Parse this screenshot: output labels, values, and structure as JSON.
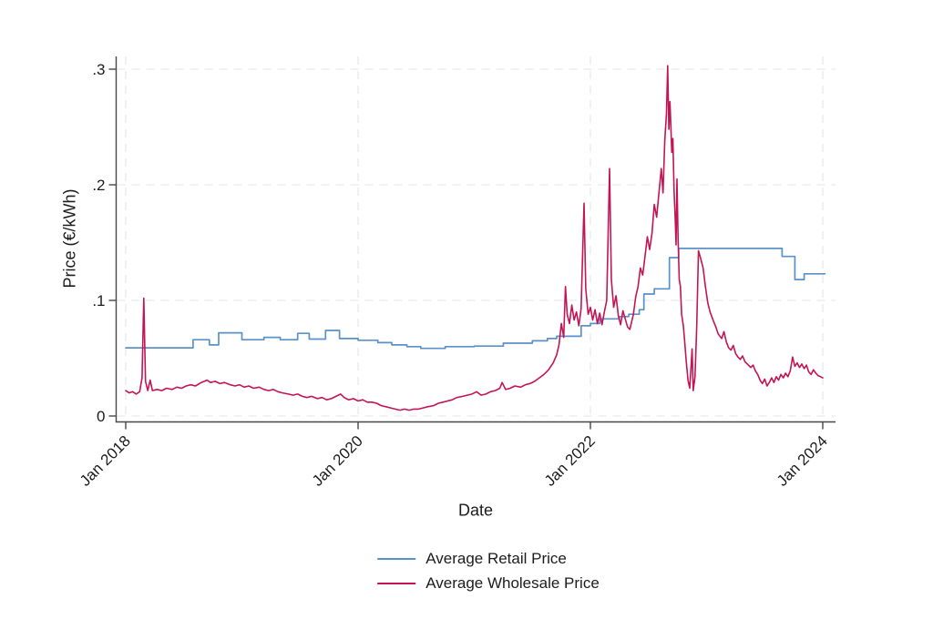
{
  "figure": {
    "background": "#ffffff",
    "axis_color": "#474747",
    "grid_color": "#e5e5e5",
    "text_color": "#1c1c1c"
  },
  "chart_data": {
    "type": "line",
    "title": "",
    "xlabel": "Date",
    "ylabel": "Price (€/kWh)",
    "grid": {
      "show": true,
      "style": "dashed",
      "which": "both"
    },
    "legend": {
      "position": "bottom-center"
    },
    "x_axis": {
      "range": [
        2017.91,
        2024.11
      ],
      "label_rotation_deg": 45,
      "ticks": [
        {
          "value": 2018.0,
          "label": "Jan 2018"
        },
        {
          "value": 2020.0,
          "label": "Jan 2020"
        },
        {
          "value": 2022.0,
          "label": "Jan 2022"
        },
        {
          "value": 2024.0,
          "label": "Jan 2024"
        }
      ]
    },
    "y_axis": {
      "range": [
        0,
        0.311
      ],
      "ticks": [
        {
          "value": 0.0,
          "label": "0"
        },
        {
          "value": 0.1,
          "label": ".1"
        },
        {
          "value": 0.2,
          "label": ".2"
        },
        {
          "value": 0.3,
          "label": ".3"
        }
      ]
    },
    "series": [
      {
        "name": "Average Retail Price",
        "color": "#5a91c8",
        "width": 1.7,
        "interpolation": "step-after",
        "points": [
          [
            2018.0,
            0.059
          ],
          [
            2018.58,
            0.066
          ],
          [
            2018.72,
            0.0615
          ],
          [
            2018.8,
            0.072
          ],
          [
            2019.0,
            0.066
          ],
          [
            2019.19,
            0.068
          ],
          [
            2019.33,
            0.066
          ],
          [
            2019.48,
            0.0715
          ],
          [
            2019.58,
            0.0665
          ],
          [
            2019.72,
            0.074
          ],
          [
            2019.84,
            0.067
          ],
          [
            2020.0,
            0.0655
          ],
          [
            2020.17,
            0.0635
          ],
          [
            2020.29,
            0.0615
          ],
          [
            2020.42,
            0.06
          ],
          [
            2020.54,
            0.0585
          ],
          [
            2020.75,
            0.06
          ],
          [
            2021.0,
            0.0605
          ],
          [
            2021.25,
            0.063
          ],
          [
            2021.5,
            0.065
          ],
          [
            2021.63,
            0.067
          ],
          [
            2021.71,
            0.069
          ],
          [
            2021.92,
            0.078
          ],
          [
            2022.0,
            0.08
          ],
          [
            2022.08,
            0.084
          ],
          [
            2022.25,
            0.086
          ],
          [
            2022.33,
            0.088
          ],
          [
            2022.42,
            0.092
          ],
          [
            2022.46,
            0.1055
          ],
          [
            2022.55,
            0.11
          ],
          [
            2022.68,
            0.137
          ],
          [
            2022.76,
            0.145
          ],
          [
            2023.65,
            0.138
          ],
          [
            2023.76,
            0.118
          ],
          [
            2023.84,
            0.123
          ],
          [
            2024.02,
            0.123
          ]
        ]
      },
      {
        "name": "Average Wholesale Price",
        "color": "#c31555",
        "width": 1.6,
        "interpolation": "linear",
        "points": [
          [
            2018.0,
            0.022
          ],
          [
            2018.03,
            0.02
          ],
          [
            2018.06,
            0.021
          ],
          [
            2018.09,
            0.019
          ],
          [
            2018.12,
            0.021
          ],
          [
            2018.14,
            0.033
          ],
          [
            2018.155,
            0.102
          ],
          [
            2018.17,
            0.03
          ],
          [
            2018.19,
            0.022
          ],
          [
            2018.21,
            0.031
          ],
          [
            2018.23,
            0.022
          ],
          [
            2018.27,
            0.023
          ],
          [
            2018.31,
            0.022
          ],
          [
            2018.35,
            0.024
          ],
          [
            2018.4,
            0.023
          ],
          [
            2018.44,
            0.025
          ],
          [
            2018.48,
            0.024
          ],
          [
            2018.52,
            0.026
          ],
          [
            2018.56,
            0.027
          ],
          [
            2018.6,
            0.026
          ],
          [
            2018.65,
            0.029
          ],
          [
            2018.7,
            0.031
          ],
          [
            2018.73,
            0.029
          ],
          [
            2018.77,
            0.03
          ],
          [
            2018.81,
            0.028
          ],
          [
            2018.85,
            0.029
          ],
          [
            2018.9,
            0.027
          ],
          [
            2018.94,
            0.026
          ],
          [
            2018.98,
            0.027
          ],
          [
            2019.02,
            0.025
          ],
          [
            2019.06,
            0.026
          ],
          [
            2019.1,
            0.024
          ],
          [
            2019.15,
            0.025
          ],
          [
            2019.19,
            0.023
          ],
          [
            2019.23,
            0.022
          ],
          [
            2019.27,
            0.023
          ],
          [
            2019.31,
            0.021
          ],
          [
            2019.35,
            0.02
          ],
          [
            2019.4,
            0.019
          ],
          [
            2019.44,
            0.018
          ],
          [
            2019.48,
            0.019
          ],
          [
            2019.52,
            0.017
          ],
          [
            2019.56,
            0.016
          ],
          [
            2019.6,
            0.017
          ],
          [
            2019.65,
            0.015
          ],
          [
            2019.69,
            0.016
          ],
          [
            2019.73,
            0.014
          ],
          [
            2019.77,
            0.015
          ],
          [
            2019.81,
            0.017
          ],
          [
            2019.85,
            0.019
          ],
          [
            2019.88,
            0.016
          ],
          [
            2019.92,
            0.014
          ],
          [
            2019.96,
            0.015
          ],
          [
            2020.0,
            0.013
          ],
          [
            2020.04,
            0.014
          ],
          [
            2020.08,
            0.012
          ],
          [
            2020.12,
            0.012
          ],
          [
            2020.16,
            0.011
          ],
          [
            2020.2,
            0.009
          ],
          [
            2020.24,
            0.008
          ],
          [
            2020.28,
            0.007
          ],
          [
            2020.32,
            0.006
          ],
          [
            2020.36,
            0.005
          ],
          [
            2020.4,
            0.006
          ],
          [
            2020.44,
            0.005
          ],
          [
            2020.48,
            0.006
          ],
          [
            2020.52,
            0.006
          ],
          [
            2020.56,
            0.007
          ],
          [
            2020.6,
            0.008
          ],
          [
            2020.65,
            0.009
          ],
          [
            2020.69,
            0.011
          ],
          [
            2020.73,
            0.012
          ],
          [
            2020.77,
            0.013
          ],
          [
            2020.81,
            0.014
          ],
          [
            2020.85,
            0.016
          ],
          [
            2020.9,
            0.017
          ],
          [
            2020.94,
            0.018
          ],
          [
            2020.98,
            0.019
          ],
          [
            2021.02,
            0.021
          ],
          [
            2021.06,
            0.018
          ],
          [
            2021.1,
            0.019
          ],
          [
            2021.14,
            0.021
          ],
          [
            2021.18,
            0.022
          ],
          [
            2021.22,
            0.024
          ],
          [
            2021.24,
            0.029
          ],
          [
            2021.27,
            0.023
          ],
          [
            2021.31,
            0.024
          ],
          [
            2021.35,
            0.026
          ],
          [
            2021.4,
            0.025
          ],
          [
            2021.44,
            0.027
          ],
          [
            2021.48,
            0.028
          ],
          [
            2021.52,
            0.03
          ],
          [
            2021.56,
            0.033
          ],
          [
            2021.6,
            0.036
          ],
          [
            2021.64,
            0.04
          ],
          [
            2021.68,
            0.046
          ],
          [
            2021.71,
            0.053
          ],
          [
            2021.73,
            0.062
          ],
          [
            2021.75,
            0.08
          ],
          [
            2021.77,
            0.068
          ],
          [
            2021.785,
            0.112
          ],
          [
            2021.8,
            0.088
          ],
          [
            2021.82,
            0.08
          ],
          [
            2021.84,
            0.096
          ],
          [
            2021.86,
            0.083
          ],
          [
            2021.88,
            0.09
          ],
          [
            2021.9,
            0.078
          ],
          [
            2021.92,
            0.093
          ],
          [
            2021.945,
            0.184
          ],
          [
            2021.96,
            0.11
          ],
          [
            2021.98,
            0.088
          ],
          [
            2022.0,
            0.094
          ],
          [
            2022.02,
            0.083
          ],
          [
            2022.04,
            0.092
          ],
          [
            2022.06,
            0.08
          ],
          [
            2022.08,
            0.089
          ],
          [
            2022.1,
            0.079
          ],
          [
            2022.12,
            0.09
          ],
          [
            2022.14,
            0.1
          ],
          [
            2022.165,
            0.214
          ],
          [
            2022.18,
            0.118
          ],
          [
            2022.2,
            0.094
          ],
          [
            2022.22,
            0.104
          ],
          [
            2022.24,
            0.087
          ],
          [
            2022.26,
            0.079
          ],
          [
            2022.28,
            0.091
          ],
          [
            2022.3,
            0.084
          ],
          [
            2022.32,
            0.077
          ],
          [
            2022.34,
            0.075
          ],
          [
            2022.37,
            0.088
          ],
          [
            2022.39,
            0.103
          ],
          [
            2022.41,
            0.112
          ],
          [
            2022.43,
            0.128
          ],
          [
            2022.45,
            0.122
          ],
          [
            2022.47,
            0.138
          ],
          [
            2022.49,
            0.155
          ],
          [
            2022.51,
            0.144
          ],
          [
            2022.53,
            0.158
          ],
          [
            2022.55,
            0.183
          ],
          [
            2022.57,
            0.172
          ],
          [
            2022.59,
            0.193
          ],
          [
            2022.61,
            0.214
          ],
          [
            2022.625,
            0.193
          ],
          [
            2022.64,
            0.238
          ],
          [
            2022.655,
            0.262
          ],
          [
            2022.665,
            0.303
          ],
          [
            2022.675,
            0.248
          ],
          [
            2022.685,
            0.272
          ],
          [
            2022.7,
            0.228
          ],
          [
            2022.71,
            0.24
          ],
          [
            2022.72,
            0.195
          ],
          [
            2022.73,
            0.17
          ],
          [
            2022.737,
            0.148
          ],
          [
            2022.745,
            0.205
          ],
          [
            2022.755,
            0.15
          ],
          [
            2022.765,
            0.118
          ],
          [
            2022.775,
            0.112
          ],
          [
            2022.785,
            0.088
          ],
          [
            2022.8,
            0.078
          ],
          [
            2022.81,
            0.066
          ],
          [
            2022.825,
            0.047
          ],
          [
            2022.84,
            0.031
          ],
          [
            2022.855,
            0.024
          ],
          [
            2022.865,
            0.04
          ],
          [
            2022.875,
            0.058
          ],
          [
            2022.885,
            0.022
          ],
          [
            2022.9,
            0.034
          ],
          [
            2022.915,
            0.078
          ],
          [
            2022.93,
            0.143
          ],
          [
            2022.95,
            0.136
          ],
          [
            2022.97,
            0.128
          ],
          [
            2022.99,
            0.112
          ],
          [
            2023.01,
            0.098
          ],
          [
            2023.03,
            0.09
          ],
          [
            2023.06,
            0.082
          ],
          [
            2023.08,
            0.077
          ],
          [
            2023.1,
            0.071
          ],
          [
            2023.13,
            0.067
          ],
          [
            2023.15,
            0.073
          ],
          [
            2023.17,
            0.064
          ],
          [
            2023.19,
            0.059
          ],
          [
            2023.21,
            0.057
          ],
          [
            2023.23,
            0.061
          ],
          [
            2023.25,
            0.054
          ],
          [
            2023.27,
            0.051
          ],
          [
            2023.29,
            0.049
          ],
          [
            2023.31,
            0.052
          ],
          [
            2023.33,
            0.047
          ],
          [
            2023.36,
            0.044
          ],
          [
            2023.38,
            0.042
          ],
          [
            2023.4,
            0.044
          ],
          [
            2023.42,
            0.039
          ],
          [
            2023.44,
            0.036
          ],
          [
            2023.46,
            0.031
          ],
          [
            2023.48,
            0.028
          ],
          [
            2023.5,
            0.032
          ],
          [
            2023.52,
            0.026
          ],
          [
            2023.54,
            0.029
          ],
          [
            2023.56,
            0.033
          ],
          [
            2023.58,
            0.029
          ],
          [
            2023.6,
            0.034
          ],
          [
            2023.62,
            0.031
          ],
          [
            2023.64,
            0.036
          ],
          [
            2023.66,
            0.033
          ],
          [
            2023.68,
            0.037
          ],
          [
            2023.7,
            0.034
          ],
          [
            2023.72,
            0.039
          ],
          [
            2023.74,
            0.051
          ],
          [
            2023.76,
            0.043
          ],
          [
            2023.78,
            0.046
          ],
          [
            2023.8,
            0.042
          ],
          [
            2023.82,
            0.045
          ],
          [
            2023.84,
            0.041
          ],
          [
            2023.86,
            0.044
          ],
          [
            2023.88,
            0.038
          ],
          [
            2023.9,
            0.036
          ],
          [
            2023.92,
            0.04
          ],
          [
            2023.94,
            0.037
          ],
          [
            2023.96,
            0.035
          ],
          [
            2023.98,
            0.034
          ],
          [
            2024.0,
            0.033
          ]
        ]
      }
    ]
  }
}
